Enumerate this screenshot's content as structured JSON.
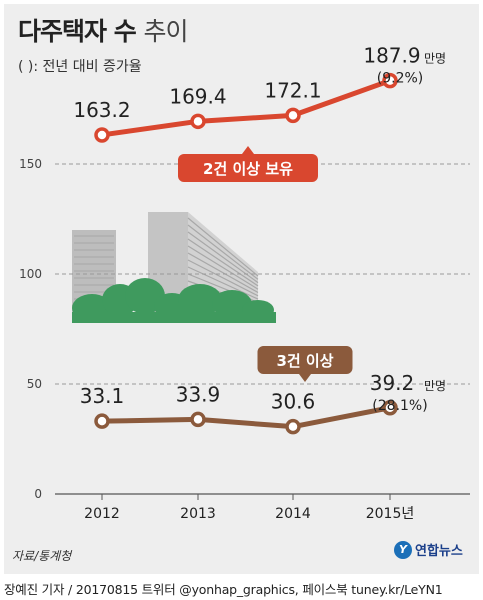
{
  "header": {
    "title_bold": "다주택자 수",
    "title_light": "추이",
    "subtitle": "(   ): 전년 대비 증가율"
  },
  "source": "자료/통계청",
  "logo_text": "연합뉴스",
  "credit": "장예진 기자 / 20170815 트위터 @yonhap_graphics, 페이스북 tuney.kr/LeYN1",
  "colors": {
    "series1": "#d9472f",
    "series2": "#8b5a3c",
    "grid": "#999999",
    "building": "#bdbdbd",
    "trees": "#3f9a5e"
  },
  "icons": [
    "apartment-buildings-illustration",
    "trees-illustration"
  ],
  "chart_data": {
    "type": "line",
    "categories": [
      "2012",
      "2013",
      "2014",
      "2015년"
    ],
    "yticks": [
      0,
      50,
      100,
      150
    ],
    "ylim": [
      0,
      200
    ],
    "grid": true,
    "unit": "만명",
    "series": [
      {
        "name": "2건 이상 보유",
        "values": [
          163.2,
          169.4,
          172.1,
          187.9
        ],
        "labels": [
          "163.2",
          "169.4",
          "172.1",
          "187.9"
        ],
        "last_growth": "(9.2%)",
        "color": "#d9472f"
      },
      {
        "name": "3건 이상",
        "values": [
          33.1,
          33.9,
          30.6,
          39.2
        ],
        "labels": [
          "33.1",
          "33.9",
          "30.6",
          "39.2"
        ],
        "last_growth": "(28.1%)",
        "color": "#8b5a3c"
      }
    ]
  }
}
